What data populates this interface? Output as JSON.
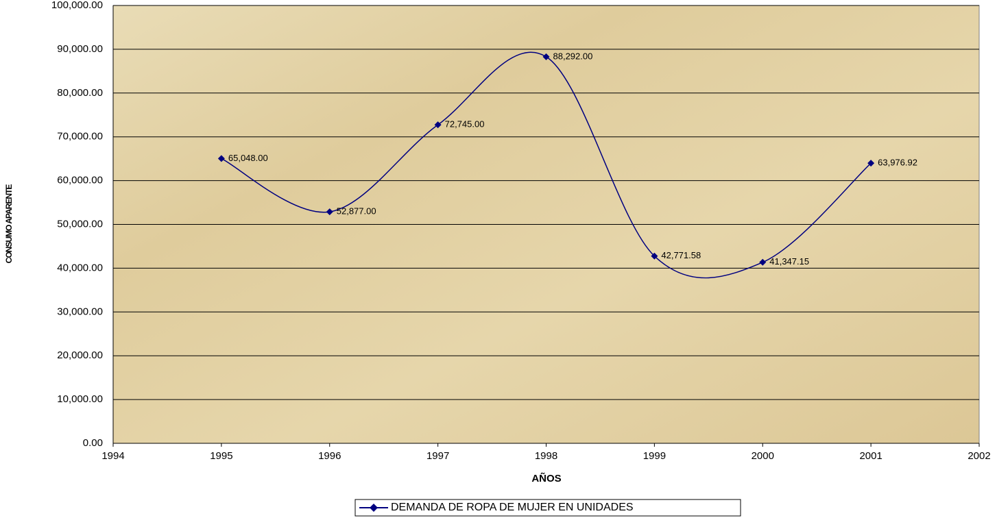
{
  "chart_data": {
    "type": "line",
    "x": [
      1995,
      1996,
      1997,
      1998,
      1999,
      2000,
      2001
    ],
    "series": [
      {
        "name": "DEMANDA DE ROPA DE MUJER EN UNIDADES",
        "color": "#000080",
        "values": [
          65048,
          52877,
          72745,
          88292,
          42771.58,
          41347.15,
          63976.92
        ],
        "value_labels": [
          "65,048.00",
          "52,877.00",
          "72,745.00",
          "88,292.00",
          "42,771.58",
          "41,347.15",
          "63,976.92"
        ]
      }
    ],
    "xlim": [
      1994,
      2002
    ],
    "xticks": [
      1994,
      1995,
      1996,
      1997,
      1998,
      1999,
      2000,
      2001,
      2002
    ],
    "ylim": [
      0,
      100000
    ],
    "yticks": [
      {
        "value": 0,
        "label": "0.00"
      },
      {
        "value": 10000,
        "label": "10,000.00"
      },
      {
        "value": 20000,
        "label": "20,000.00"
      },
      {
        "value": 30000,
        "label": "30,000.00"
      },
      {
        "value": 40000,
        "label": "40,000.00"
      },
      {
        "value": 50000,
        "label": "50,000.00"
      },
      {
        "value": 60000,
        "label": "60,000.00"
      },
      {
        "value": 70000,
        "label": "70,000.00"
      },
      {
        "value": 80000,
        "label": "80,000.00"
      },
      {
        "value": 90000,
        "label": "90,000.00"
      },
      {
        "value": 100000,
        "label": "100,000.00"
      }
    ],
    "xlabel": "AÑOS",
    "ylabel": "CONSUMO APARENTE",
    "grid": true,
    "smooth": true,
    "legend": "bottom"
  }
}
